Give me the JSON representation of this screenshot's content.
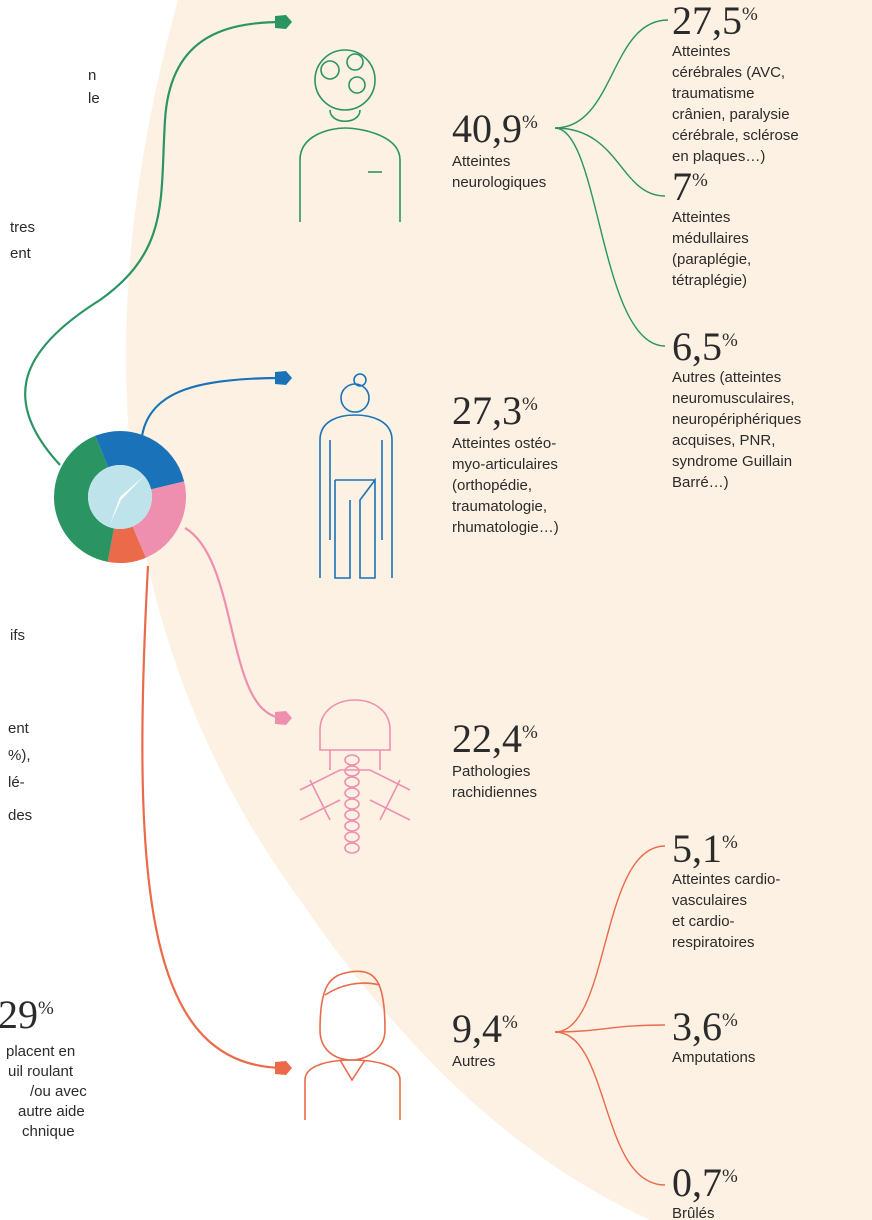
{
  "percent_sign": "%",
  "categories": [
    {
      "pct": {
        "value": 40.9,
        "label": "40,9"
      },
      "label": [
        "Atteintes",
        "neurologiques"
      ],
      "color": "#2a9462",
      "subcategories": [
        {
          "pct": {
            "value": 27.5,
            "label": "27,5"
          },
          "label": [
            "Atteintes",
            "cérébrales (AVC,",
            "traumatisme",
            "crânien, paralysie",
            "cérébrale, sclérose",
            "en plaques…)"
          ]
        },
        {
          "pct": {
            "value": 7,
            "label": "7"
          },
          "label": [
            "Atteintes",
            "médullaires",
            "(paraplégie,",
            "tétraplégie)"
          ]
        },
        {
          "pct": {
            "value": 6.5,
            "label": "6,5"
          },
          "label": [
            "Autres (atteintes",
            "neuromusculaires,",
            "neuropériphériques",
            "acquises, PNR,",
            "syndrome Guillain",
            "Barré…)"
          ]
        }
      ]
    },
    {
      "pct": {
        "value": 27.3,
        "label": "27,3"
      },
      "label": [
        "Atteintes ostéo-",
        "myo-articulaires",
        "(orthopédie,",
        "traumatologie,",
        "rhumatologie…)"
      ],
      "color": "#1a73b8",
      "subcategories": []
    },
    {
      "pct": {
        "value": 22.4,
        "label": "22,4"
      },
      "label": [
        "Pathologies",
        "rachidiennes"
      ],
      "color": "#ef8fb0",
      "subcategories": []
    },
    {
      "pct": {
        "value": 9.4,
        "label": "9,4"
      },
      "label": [
        "Autres"
      ],
      "color": "#ea6a4a",
      "subcategories": [
        {
          "pct": {
            "value": 5.1,
            "label": "5,1"
          },
          "label": [
            "Atteintes cardio-",
            "vasculaires",
            "et cardio-",
            "respiratoires"
          ]
        },
        {
          "pct": {
            "value": 3.6,
            "label": "3,6"
          },
          "label": [
            "Amputations"
          ]
        },
        {
          "pct": {
            "value": 0.7,
            "label": "0,7"
          },
          "label": [
            "Brûlés"
          ]
        }
      ]
    }
  ],
  "left_fragments": [
    "n",
    "le",
    "tres",
    "ent",
    "ifs",
    "ent",
    "%),",
    "lé-",
    "des"
  ],
  "left_stat": {
    "pct": {
      "value": 29,
      "label": "29"
    },
    "label": [
      "placent en",
      "uil roulant",
      "/ou avec",
      "autre aide",
      "chnique"
    ]
  }
}
